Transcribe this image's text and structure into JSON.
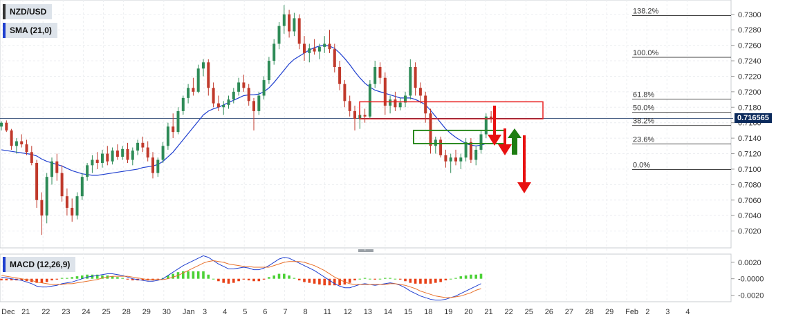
{
  "labels": {
    "symbol": "NZD/USD",
    "sma": "SMA (21,0)",
    "macd": "MACD (12,26,9)",
    "current_price": "0.716565"
  },
  "colors": {
    "up": "#2e8b57",
    "down": "#c0392b",
    "sma": "#1f3fcf",
    "macd_line": "#1f3fcf",
    "signal_line": "#e8702a",
    "hist_pos": "#4cd137",
    "hist_neg": "#e84118",
    "resistance_box": "#e81f1f",
    "support_box": "#2b8a1f",
    "arrow_down": "#e81010",
    "arrow_up": "#1e7d12",
    "price_tag": "#0b2a5c"
  },
  "chart_data": {
    "type": "candlestick",
    "price_axis": {
      "range": [
        0.7,
        0.7315
      ],
      "ticks": [
        "0.7300",
        "0.7280",
        "0.7260",
        "0.7240",
        "0.7220",
        "0.7200",
        "0.7180",
        "0.7160",
        "0.7140",
        "0.7120",
        "0.7100",
        "0.7080",
        "0.7060",
        "0.7040",
        "0.7020"
      ]
    },
    "macd_axis": {
      "range": [
        -0.0028,
        0.003
      ],
      "ticks": [
        "0.0020",
        "-0.0000",
        "-0.0020"
      ]
    },
    "x_axis": {
      "labels": [
        "Dec",
        "21",
        "22",
        "23",
        "24",
        "25",
        "28",
        "29",
        "30",
        "Jan",
        "3",
        "4",
        "5",
        "6",
        "7",
        "8",
        "11",
        "12",
        "13",
        "14",
        "15",
        "18",
        "19",
        "20",
        "21",
        "22",
        "25",
        "26",
        "27",
        "28",
        "29",
        "Feb",
        "2",
        "3",
        "4"
      ]
    },
    "fibonacci": [
      {
        "label": "138.2%",
        "price": 0.72985
      },
      {
        "label": "100.0%",
        "price": 0.72445
      },
      {
        "label": "61.8%",
        "price": 0.71905
      },
      {
        "label": "50.0%",
        "price": 0.71735
      },
      {
        "label": "38.2%",
        "price": 0.71565
      },
      {
        "label": "23.6%",
        "price": 0.71325
      },
      {
        "label": "0.0%",
        "price": 0.70995
      }
    ],
    "current_price": 0.716565,
    "series_note": "",
    "candles": [
      [
        0.7155,
        0.7162,
        0.715,
        0.716
      ],
      [
        0.716,
        0.7163,
        0.7148,
        0.715
      ],
      [
        0.715,
        0.7152,
        0.7125,
        0.713
      ],
      [
        0.713,
        0.714,
        0.712,
        0.7136
      ],
      [
        0.7136,
        0.7145,
        0.7128,
        0.7132
      ],
      [
        0.7132,
        0.7138,
        0.7118,
        0.7122
      ],
      [
        0.7122,
        0.713,
        0.7105,
        0.7108
      ],
      [
        0.7108,
        0.7112,
        0.705,
        0.706
      ],
      [
        0.706,
        0.707,
        0.7015,
        0.704
      ],
      [
        0.704,
        0.7095,
        0.703,
        0.709
      ],
      [
        0.709,
        0.7115,
        0.708,
        0.711
      ],
      [
        0.711,
        0.712,
        0.7085,
        0.7095
      ],
      [
        0.7095,
        0.7105,
        0.7058,
        0.7065
      ],
      [
        0.7065,
        0.7075,
        0.704,
        0.705
      ],
      [
        0.705,
        0.7062,
        0.7032,
        0.704
      ],
      [
        0.704,
        0.707,
        0.7035,
        0.7065
      ],
      [
        0.7065,
        0.7095,
        0.706,
        0.709
      ],
      [
        0.709,
        0.7108,
        0.7085,
        0.7105
      ],
      [
        0.7105,
        0.7118,
        0.7095,
        0.7112
      ],
      [
        0.7112,
        0.7122,
        0.71,
        0.7108
      ],
      [
        0.7108,
        0.7125,
        0.7102,
        0.712
      ],
      [
        0.712,
        0.713,
        0.7105,
        0.711
      ],
      [
        0.711,
        0.7128,
        0.7106,
        0.7124
      ],
      [
        0.7124,
        0.7132,
        0.7112,
        0.7116
      ],
      [
        0.7116,
        0.713,
        0.7112,
        0.7126
      ],
      [
        0.7126,
        0.7134,
        0.7108,
        0.7112
      ],
      [
        0.7112,
        0.7128,
        0.7105,
        0.7124
      ],
      [
        0.7124,
        0.7138,
        0.7118,
        0.7134
      ],
      [
        0.7134,
        0.7142,
        0.7122,
        0.7128
      ],
      [
        0.7128,
        0.7136,
        0.711,
        0.7115
      ],
      [
        0.7115,
        0.7122,
        0.7088,
        0.7095
      ],
      [
        0.7095,
        0.7115,
        0.709,
        0.7112
      ],
      [
        0.7112,
        0.7135,
        0.7108,
        0.713
      ],
      [
        0.713,
        0.716,
        0.7125,
        0.7155
      ],
      [
        0.7155,
        0.7172,
        0.714,
        0.7148
      ],
      [
        0.7148,
        0.718,
        0.7145,
        0.7175
      ],
      [
        0.7175,
        0.7195,
        0.717,
        0.7192
      ],
      [
        0.7192,
        0.721,
        0.7185,
        0.7205
      ],
      [
        0.7205,
        0.7218,
        0.7195,
        0.72
      ],
      [
        0.72,
        0.7235,
        0.7198,
        0.723
      ],
      [
        0.723,
        0.7242,
        0.722,
        0.7238
      ],
      [
        0.7238,
        0.7242,
        0.7195,
        0.7205
      ],
      [
        0.7205,
        0.7212,
        0.718,
        0.7185
      ],
      [
        0.7185,
        0.7195,
        0.7175,
        0.718
      ],
      [
        0.718,
        0.7188,
        0.717,
        0.7183
      ],
      [
        0.7183,
        0.7195,
        0.7178,
        0.719
      ],
      [
        0.719,
        0.7205,
        0.7185,
        0.72
      ],
      [
        0.72,
        0.7218,
        0.7195,
        0.7212
      ],
      [
        0.7212,
        0.7222,
        0.72,
        0.7205
      ],
      [
        0.7205,
        0.721,
        0.7182,
        0.7188
      ],
      [
        0.7188,
        0.7192,
        0.715,
        0.7175
      ],
      [
        0.7175,
        0.72,
        0.717,
        0.7195
      ],
      [
        0.7195,
        0.722,
        0.719,
        0.7215
      ],
      [
        0.7215,
        0.7245,
        0.721,
        0.724
      ],
      [
        0.724,
        0.7268,
        0.7235,
        0.7262
      ],
      [
        0.7262,
        0.729,
        0.7255,
        0.7285
      ],
      [
        0.7285,
        0.7312,
        0.7275,
        0.73
      ],
      [
        0.73,
        0.7306,
        0.727,
        0.7278
      ],
      [
        0.7278,
        0.7302,
        0.7272,
        0.7295
      ],
      [
        0.7295,
        0.73,
        0.7255,
        0.7262
      ],
      [
        0.7262,
        0.7272,
        0.724,
        0.725
      ],
      [
        0.725,
        0.7262,
        0.7238,
        0.7256
      ],
      [
        0.7256,
        0.7268,
        0.7248,
        0.7252
      ],
      [
        0.7252,
        0.7262,
        0.7242,
        0.7258
      ],
      [
        0.7258,
        0.7272,
        0.725,
        0.7262
      ],
      [
        0.7262,
        0.728,
        0.725,
        0.7255
      ],
      [
        0.7255,
        0.7262,
        0.7225,
        0.7232
      ],
      [
        0.7232,
        0.724,
        0.7202,
        0.721
      ],
      [
        0.721,
        0.7215,
        0.718,
        0.7188
      ],
      [
        0.7188,
        0.7195,
        0.7168,
        0.7175
      ],
      [
        0.7175,
        0.7182,
        0.715,
        0.7165
      ],
      [
        0.7165,
        0.7175,
        0.7152,
        0.717
      ],
      [
        0.717,
        0.7178,
        0.716,
        0.7168
      ],
      [
        0.7168,
        0.7215,
        0.7165,
        0.721
      ],
      [
        0.721,
        0.724,
        0.7205,
        0.7232
      ],
      [
        0.7232,
        0.7238,
        0.721,
        0.7218
      ],
      [
        0.7218,
        0.7225,
        0.717,
        0.7182
      ],
      [
        0.7182,
        0.7195,
        0.7172,
        0.719
      ],
      [
        0.719,
        0.72,
        0.7175,
        0.718
      ],
      [
        0.718,
        0.7192,
        0.7176,
        0.7186
      ],
      [
        0.7186,
        0.72,
        0.718,
        0.7195
      ],
      [
        0.7195,
        0.7242,
        0.719,
        0.7232
      ],
      [
        0.7232,
        0.7238,
        0.7195,
        0.7205
      ],
      [
        0.7205,
        0.7212,
        0.7185,
        0.7195
      ],
      [
        0.7195,
        0.72,
        0.716,
        0.7172
      ],
      [
        0.7172,
        0.7178,
        0.712,
        0.713
      ],
      [
        0.713,
        0.7142,
        0.712,
        0.7138
      ],
      [
        0.7138,
        0.7142,
        0.7115,
        0.7118
      ],
      [
        0.7118,
        0.7125,
        0.7102,
        0.711
      ],
      [
        0.711,
        0.712,
        0.7095,
        0.7115
      ],
      [
        0.7115,
        0.7125,
        0.7105,
        0.711
      ],
      [
        0.711,
        0.712,
        0.71,
        0.7115
      ],
      [
        0.7115,
        0.714,
        0.711,
        0.7135
      ],
      [
        0.7135,
        0.714,
        0.7108,
        0.7112
      ],
      [
        0.7112,
        0.713,
        0.7105,
        0.7125
      ],
      [
        0.7125,
        0.715,
        0.712,
        0.7145
      ],
      [
        0.7145,
        0.7172,
        0.714,
        0.7168
      ],
      [
        0.7168,
        0.7175,
        0.716,
        0.7166
      ]
    ],
    "sma": [
      0.7125,
      0.7124,
      0.7123,
      0.7122,
      0.7121,
      0.712,
      0.7119,
      0.7117,
      0.7113,
      0.711,
      0.7108,
      0.7106,
      0.7104,
      0.7101,
      0.7098,
      0.7096,
      0.7094,
      0.7093,
      0.7092,
      0.7092,
      0.7093,
      0.7094,
      0.7095,
      0.7096,
      0.7097,
      0.7098,
      0.7099,
      0.71,
      0.7102,
      0.7103,
      0.7104,
      0.7106,
      0.711,
      0.7116,
      0.7122,
      0.713,
      0.7138,
      0.7146,
      0.7154,
      0.7162,
      0.717,
      0.7175,
      0.7178,
      0.718,
      0.7183,
      0.7186,
      0.7189,
      0.7192,
      0.7195,
      0.7196,
      0.7196,
      0.7197,
      0.72,
      0.7205,
      0.7212,
      0.722,
      0.7228,
      0.7236,
      0.7242,
      0.7246,
      0.725,
      0.7254,
      0.7257,
      0.7259,
      0.726,
      0.7259,
      0.7256,
      0.725,
      0.7243,
      0.7235,
      0.7226,
      0.7218,
      0.7211,
      0.7206,
      0.7202,
      0.72,
      0.7198,
      0.7196,
      0.7194,
      0.7192,
      0.7192,
      0.7192,
      0.719,
      0.7187,
      0.7183,
      0.7176,
      0.7168,
      0.716,
      0.7152,
      0.7146,
      0.7141,
      0.7137,
      0.7133,
      0.7131,
      0.713,
      0.7131,
      0.7133
    ],
    "macd": {
      "macd": [
        0.0002,
        0.0001,
        0.0,
        -0.0001,
        -0.0002,
        -0.0004,
        -0.0006,
        -0.0009,
        -0.001,
        -0.001,
        -0.0009,
        -0.0008,
        -0.0006,
        -0.0005,
        -0.0004,
        -0.0002,
        0.0,
        0.0002,
        0.0003,
        0.0004,
        0.0005,
        0.0006,
        0.0006,
        0.0005,
        0.0004,
        0.0002,
        0.0,
        -0.0001,
        -0.0002,
        -0.0003,
        -0.0003,
        -0.0002,
        0.0,
        0.0004,
        0.0008,
        0.0012,
        0.0016,
        0.0019,
        0.0022,
        0.0025,
        0.0028,
        0.0026,
        0.0022,
        0.0018,
        0.0015,
        0.0012,
        0.0012,
        0.0013,
        0.0014,
        0.0013,
        0.0011,
        0.0011,
        0.0013,
        0.0016,
        0.002,
        0.0024,
        0.0026,
        0.0025,
        0.0022,
        0.0019,
        0.0016,
        0.0013,
        0.001,
        0.0006,
        0.0002,
        -0.0002,
        -0.0006,
        -0.0009,
        -0.0011,
        -0.0011,
        -0.0009,
        -0.0007,
        -0.0006,
        -0.0007,
        -0.0008,
        -0.0007,
        -0.0006,
        -0.0005,
        -0.0006,
        -0.0008,
        -0.0011,
        -0.0015,
        -0.0018,
        -0.0021,
        -0.0023,
        -0.0025,
        -0.0026,
        -0.0026,
        -0.0025,
        -0.0023,
        -0.0021,
        -0.0018,
        -0.0015,
        -0.0012,
        -0.0009,
        -0.0006
      ],
      "signal": [
        0.0004,
        0.0003,
        0.0002,
        0.0001,
        0.0,
        -0.0001,
        -0.0002,
        -0.0004,
        -0.0005,
        -0.0006,
        -0.0007,
        -0.0007,
        -0.0007,
        -0.0006,
        -0.0006,
        -0.0005,
        -0.0004,
        -0.0003,
        -0.0002,
        -0.0001,
        0.0001,
        0.0002,
        0.0003,
        0.0003,
        0.0003,
        0.0003,
        0.0002,
        0.0001,
        0.0,
        -0.0001,
        -0.0001,
        -0.0001,
        -0.0001,
        0.0,
        0.0002,
        0.0004,
        0.0007,
        0.001,
        0.0013,
        0.0016,
        0.0019,
        0.0021,
        0.0022,
        0.0021,
        0.002,
        0.0018,
        0.0017,
        0.0016,
        0.0015,
        0.0015,
        0.0014,
        0.0014,
        0.0014,
        0.0014,
        0.0016,
        0.0018,
        0.002,
        0.0021,
        0.0021,
        0.0021,
        0.002,
        0.0018,
        0.0016,
        0.0013,
        0.001,
        0.0006,
        0.0002,
        -0.0001,
        -0.0004,
        -0.0006,
        -0.0007,
        -0.0007,
        -0.0007,
        -0.0007,
        -0.0007,
        -0.0007,
        -0.0007,
        -0.0006,
        -0.0006,
        -0.0007,
        -0.0008,
        -0.001,
        -0.0012,
        -0.0015,
        -0.0017,
        -0.0019,
        -0.0021,
        -0.0022,
        -0.0023,
        -0.0023,
        -0.0022,
        -0.0021,
        -0.0019,
        -0.0017,
        -0.0014,
        -0.0012
      ]
    }
  }
}
